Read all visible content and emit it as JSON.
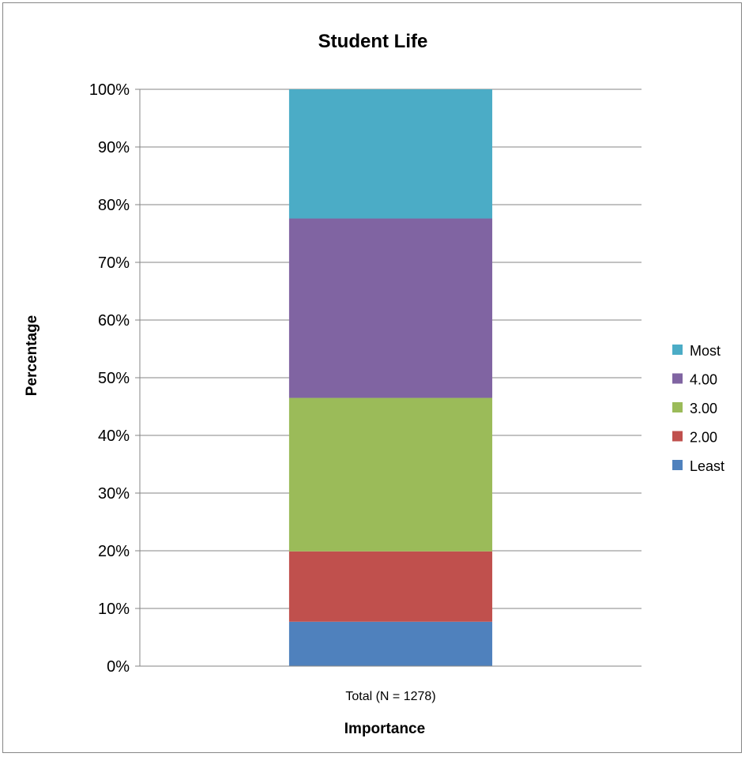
{
  "chart_data": {
    "type": "bar",
    "stacked": true,
    "percent_stacked": true,
    "title": "Student Life",
    "xlabel": "Importance",
    "ylabel": "Percentage",
    "categories": [
      "Total (N = 1278)"
    ],
    "ylim": [
      0,
      100
    ],
    "y_tick_labels": [
      "0%",
      "10%",
      "20%",
      "30%",
      "40%",
      "50%",
      "60%",
      "70%",
      "80%",
      "90%",
      "100%"
    ],
    "grid": true,
    "legend_position": "right",
    "series": [
      {
        "name": "Least",
        "color": "#4F81BD",
        "values": [
          7.7
        ]
      },
      {
        "name": "2.00",
        "color": "#C0504D",
        "values": [
          12.2
        ]
      },
      {
        "name": "3.00",
        "color": "#9BBB59",
        "values": [
          26.6
        ]
      },
      {
        "name": "4.00",
        "color": "#8064A2",
        "values": [
          31.1
        ]
      },
      {
        "name": "Most",
        "color": "#4BACC6",
        "values": [
          22.4
        ]
      }
    ]
  }
}
